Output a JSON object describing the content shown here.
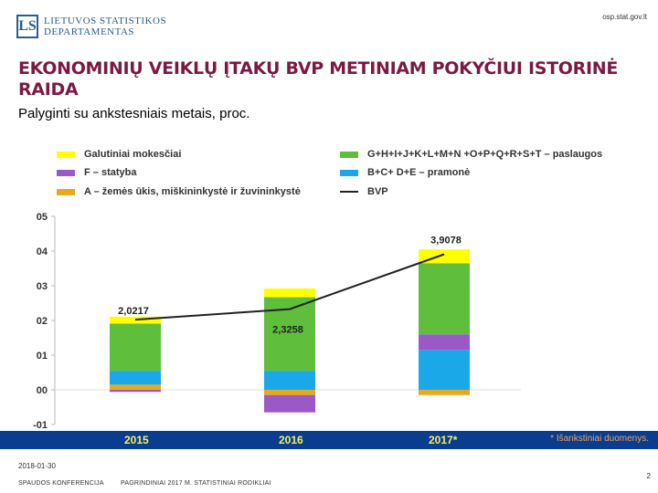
{
  "header": {
    "logo_mark": "LS",
    "logo_line1": "LIETUVOS STATISTIKOS",
    "logo_line2": "DEPARTAMENTAS",
    "site": "osp.stat.gov.lt"
  },
  "title": "EKONOMINIŲ VEIKLŲ ĮTAKŲ BVP METINIAM POKYČIUI ISTORINĖ RAIDA",
  "subtitle": "Palyginti su ankstesniais metais, proc.",
  "legend": [
    {
      "label": "Galutiniai mokesčiai",
      "color": "#ffff00",
      "kind": "box"
    },
    {
      "label": "G+H+I+J+K+L+M+N +O+P+Q+R+S+T – paslaugos",
      "color": "#5fbf3c",
      "kind": "box"
    },
    {
      "label": "F – statyba",
      "color": "#9b59c8",
      "kind": "box"
    },
    {
      "label": "B+C+ D+E – pramonė",
      "color": "#1aa8e8",
      "kind": "box"
    },
    {
      "label": "A – žemės ūkis, miškininkystė ir žuvininkystė",
      "color": "#e8a91a",
      "kind": "box"
    },
    {
      "label": "BVP",
      "color": "#222222",
      "kind": "line"
    }
  ],
  "chart_data": {
    "type": "bar",
    "stacked": true,
    "categories": [
      "2015",
      "2016",
      "2017*"
    ],
    "ylim": [
      -0.01,
      0.05
    ],
    "yticks": [
      "05",
      "04",
      "03",
      "02",
      "01",
      "00",
      "-01"
    ],
    "ytick_values": [
      0.05,
      0.04,
      0.03,
      0.02,
      0.01,
      0.0,
      -0.01
    ],
    "series": [
      {
        "name": "A – žemės ūkis, miškininkystė ir žuvininkystė",
        "color": "#e8a91a",
        "values": [
          0.0015,
          -0.0015,
          -0.0015
        ]
      },
      {
        "name": "B+C+ D+E – pramonė",
        "color": "#1aa8e8",
        "values": [
          0.004,
          0.0055,
          0.0115
        ]
      },
      {
        "name": "F – statyba",
        "color": "#9b59c8",
        "values": [
          -0.0006,
          -0.005,
          0.0045
        ]
      },
      {
        "name": "G+H+I+J+K+L+M+N +O+P+Q+R+S+T – paslaugos",
        "color": "#5fbf3c",
        "values": [
          0.0136,
          0.0212,
          0.0205
        ]
      },
      {
        "name": "Galutiniai mokesčiai",
        "color": "#ffff00",
        "values": [
          0.002,
          0.0025,
          0.004
        ]
      }
    ],
    "line": {
      "name": "BVP",
      "values": [
        0.020217,
        0.023258,
        0.039078
      ]
    },
    "data_labels": [
      "2,0217",
      "2,3258",
      "3,9078"
    ]
  },
  "footnote": "* Išankstiniai duomenys.",
  "footer": {
    "date": "2018-01-30",
    "left": "SPAUDOS KONFERENCIJA",
    "middle": "PAGRINDINIAI 2017 M. STATISTINIAI RODIKLIAI",
    "page": "2"
  }
}
